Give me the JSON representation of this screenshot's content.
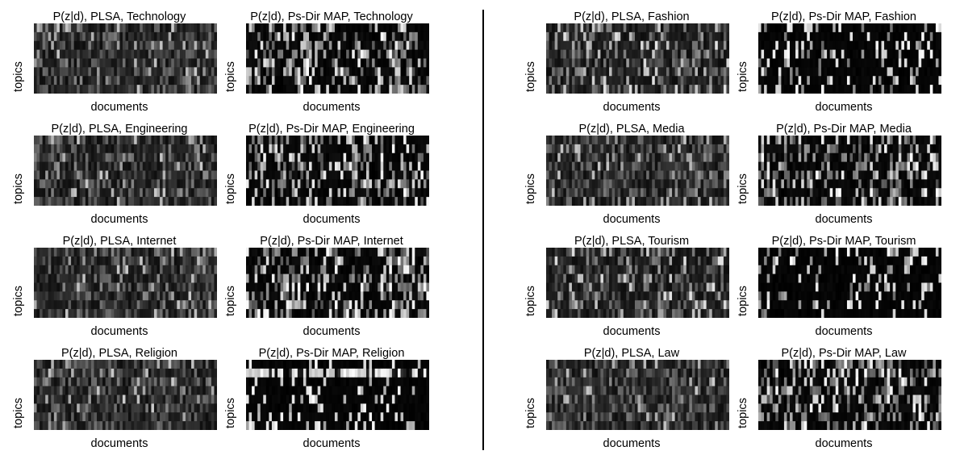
{
  "chart_data": [
    {
      "type": "heatmap",
      "title": "P(z|d), PLSA, Technology",
      "xlabel": "documents",
      "ylabel": "topics",
      "texture": "plsa-uniform",
      "seed": 11
    },
    {
      "type": "heatmap",
      "title": "P(z|d), Ps-Dir MAP, Technology",
      "xlabel": "documents",
      "ylabel": "topics",
      "texture": "psdir-moderate",
      "seed": 12
    },
    {
      "type": "heatmap",
      "title": "P(z|d), PLSA, Engineering",
      "xlabel": "documents",
      "ylabel": "topics",
      "texture": "plsa-uniform",
      "seed": 21
    },
    {
      "type": "heatmap",
      "title": "P(z|d), Ps-Dir MAP, Engineering",
      "xlabel": "documents",
      "ylabel": "topics",
      "texture": "psdir-moderate",
      "seed": 22
    },
    {
      "type": "heatmap",
      "title": "P(z|d), PLSA, Internet",
      "xlabel": "documents",
      "ylabel": "topics",
      "texture": "plsa-uniform",
      "seed": 31
    },
    {
      "type": "heatmap",
      "title": "P(z|d), Ps-Dir MAP, Internet",
      "xlabel": "documents",
      "ylabel": "topics",
      "texture": "psdir-moderate",
      "seed": 32
    },
    {
      "type": "heatmap",
      "title": "P(z|d), PLSA, Religion",
      "xlabel": "documents",
      "ylabel": "topics",
      "texture": "plsa-uniform",
      "seed": 41
    },
    {
      "type": "heatmap",
      "title": "P(z|d), Ps-Dir MAP, Religion",
      "xlabel": "documents",
      "ylabel": "topics",
      "texture": "psdir-sparse-toprow",
      "seed": 42
    },
    {
      "type": "heatmap",
      "title": "P(z|d), PLSA, Fashion",
      "xlabel": "documents",
      "ylabel": "topics",
      "texture": "plsa-coarse",
      "seed": 51
    },
    {
      "type": "heatmap",
      "title": "P(z|d), Ps-Dir MAP, Fashion",
      "xlabel": "documents",
      "ylabel": "topics",
      "texture": "psdir-sparse",
      "seed": 52
    },
    {
      "type": "heatmap",
      "title": "P(z|d), PLSA, Media",
      "xlabel": "documents",
      "ylabel": "topics",
      "texture": "plsa-uniform",
      "seed": 61
    },
    {
      "type": "heatmap",
      "title": "P(z|d), Ps-Dir MAP, Media",
      "xlabel": "documents",
      "ylabel": "topics",
      "texture": "psdir-moderate",
      "seed": 62
    },
    {
      "type": "heatmap",
      "title": "P(z|d), PLSA, Tourism",
      "xlabel": "documents",
      "ylabel": "topics",
      "texture": "plsa-coarse",
      "seed": 71
    },
    {
      "type": "heatmap",
      "title": "P(z|d), Ps-Dir MAP, Tourism",
      "xlabel": "documents",
      "ylabel": "topics",
      "texture": "psdir-sparse",
      "seed": 72
    },
    {
      "type": "heatmap",
      "title": "P(z|d), PLSA, Law",
      "xlabel": "documents",
      "ylabel": "topics",
      "texture": "plsa-uniform",
      "seed": 81
    },
    {
      "type": "heatmap",
      "title": "P(z|d), Ps-Dir MAP, Law",
      "xlabel": "documents",
      "ylabel": "topics",
      "texture": "psdir-moderate",
      "seed": 82
    }
  ],
  "colors": {
    "background": "#ffffff",
    "heatmap_low": "#000000",
    "heatmap_high": "#ffffff"
  }
}
